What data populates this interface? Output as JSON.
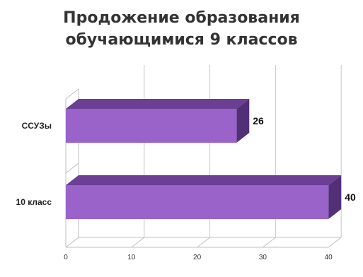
{
  "chart_data": {
    "type": "bar",
    "orientation": "horizontal",
    "style": "3d",
    "title_lines": [
      "Продожение образования",
      "обучающимися 9 классов"
    ],
    "categories": [
      "ССУЗы",
      "10 класс"
    ],
    "values": [
      26,
      40
    ],
    "data_labels": [
      "26",
      "40"
    ],
    "xlim": [
      0,
      40
    ],
    "x_ticks": [
      "0",
      "10",
      "20",
      "30",
      "40"
    ],
    "grid": true,
    "legend": "none",
    "bar_color": "#9a63c9",
    "bar_top_color": "#6a3f94",
    "bar_side_color": "#523078"
  }
}
